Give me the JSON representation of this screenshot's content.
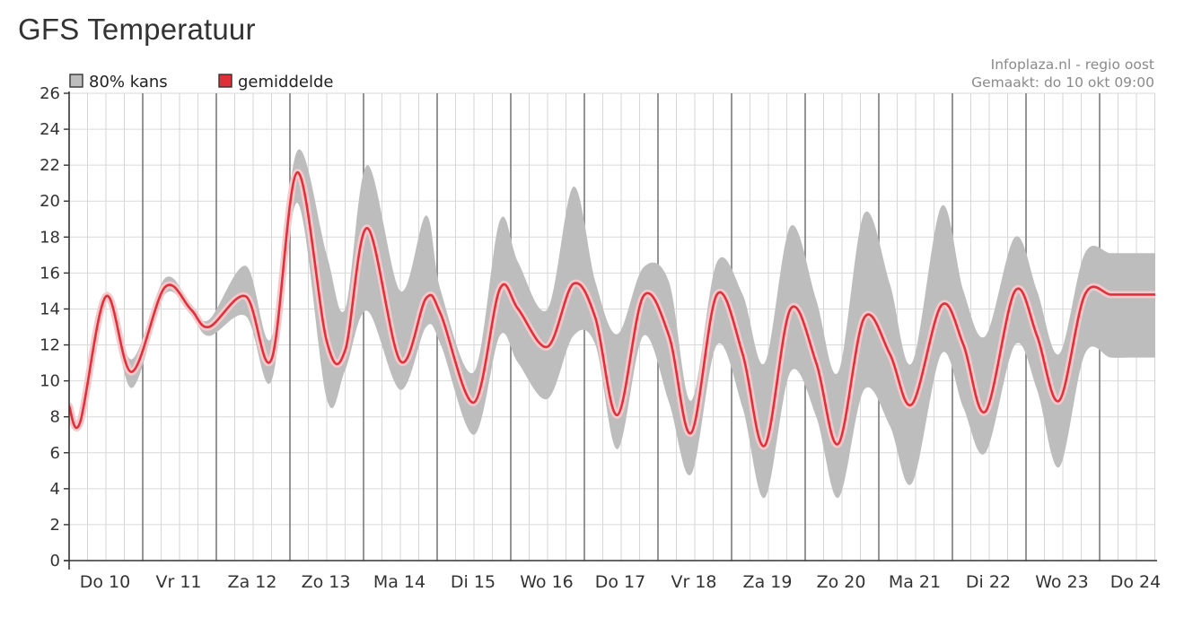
{
  "page": {
    "title": "GFS Temperatuur"
  },
  "chart_data": {
    "type": "area",
    "source": "Infoplaza.nl - regio oost",
    "made": "Gemaakt: do 10 okt 09:00",
    "legend_position": "top-left",
    "grid": true,
    "ylim": [
      0,
      26
    ],
    "y_ticks": [
      0,
      2,
      4,
      6,
      8,
      10,
      12,
      14,
      16,
      18,
      20,
      22,
      24,
      26
    ],
    "x_range_days": [
      -0.95,
      14.85
    ],
    "day_labels": [
      "Do 10",
      "Vr 11",
      "Za 12",
      "Zo 13",
      "Ma 14",
      "Di 15",
      "Wo 16",
      "Do 17",
      "Vr 18",
      "Za 19",
      "Zo 20",
      "Ma 21",
      "Di 22",
      "Wo 23",
      "Do 24"
    ],
    "legend": [
      {
        "label": "80% kans",
        "color": "#bdbdbd"
      },
      {
        "label": "gemiddelde",
        "color": "#e0303a"
      }
    ],
    "x_unit": "days",
    "series": [
      {
        "name": "gemiddelde",
        "x": [
          -0.95,
          -0.8,
          -0.45,
          -0.1,
          0.35,
          0.7,
          0.95,
          1.45,
          1.8,
          2.15,
          2.55,
          2.8,
          3.1,
          3.55,
          3.9,
          4.1,
          4.55,
          4.9,
          5.15,
          5.55,
          5.9,
          6.2,
          6.5,
          6.85,
          7.2,
          7.5,
          7.85,
          8.2,
          8.5,
          8.85,
          9.2,
          9.5,
          9.85,
          10.2,
          10.5,
          10.9,
          11.2,
          11.5,
          11.9,
          12.2,
          12.5,
          12.85,
          13.2,
          13.5,
          13.85,
          14.2,
          14.5,
          14.85
        ],
        "values": [
          8.6,
          7.7,
          14.7,
          10.5,
          15.2,
          14.0,
          13.0,
          14.7,
          11.2,
          21.6,
          12.2,
          11.7,
          18.5,
          11.1,
          14.6,
          13.7,
          8.8,
          15.1,
          14.0,
          11.9,
          15.4,
          13.5,
          8.1,
          14.7,
          12.5,
          7.1,
          14.8,
          11.5,
          6.4,
          14.0,
          11.0,
          6.5,
          13.5,
          11.5,
          8.7,
          14.2,
          12.0,
          8.3,
          15.0,
          12.5,
          8.9,
          14.8,
          14.8,
          14.8,
          14.8,
          14.8,
          14.8,
          14.8
        ]
      },
      {
        "name": "80% kans",
        "x": [
          -0.95,
          -0.8,
          -0.45,
          -0.1,
          0.35,
          0.7,
          0.95,
          1.45,
          1.8,
          2.15,
          2.55,
          2.8,
          3.1,
          3.55,
          3.9,
          4.1,
          4.55,
          4.9,
          5.15,
          5.55,
          5.9,
          6.2,
          6.5,
          6.85,
          7.2,
          7.5,
          7.85,
          8.2,
          8.5,
          8.85,
          9.2,
          9.5,
          9.85,
          10.2,
          10.5,
          10.9,
          11.2,
          11.5,
          11.9,
          12.2,
          12.5,
          12.85,
          13.2,
          13.5,
          13.85,
          14.2,
          14.5,
          14.85
        ],
        "lower": [
          8.5,
          7.6,
          14.4,
          9.6,
          14.8,
          13.7,
          12.5,
          13.6,
          10.0,
          19.9,
          9.0,
          10.6,
          13.9,
          9.5,
          13.0,
          12.0,
          7.0,
          12.5,
          11.0,
          9.0,
          12.5,
          12.0,
          6.2,
          12.5,
          8.8,
          4.8,
          12.0,
          8.5,
          3.5,
          10.5,
          8.0,
          3.5,
          9.5,
          7.5,
          4.3,
          11.5,
          8.5,
          6.0,
          12.0,
          9.5,
          5.2,
          11.5,
          11.3,
          11.3,
          11.3,
          11.3,
          11.3,
          11.3
        ],
        "upper": [
          8.7,
          7.8,
          14.9,
          11.2,
          15.7,
          14.3,
          13.4,
          16.4,
          12.4,
          22.8,
          17.0,
          14.0,
          22.0,
          15.0,
          19.2,
          15.0,
          10.5,
          18.9,
          16.6,
          14.0,
          20.8,
          15.5,
          12.6,
          16.3,
          15.5,
          8.9,
          16.6,
          14.8,
          11.0,
          18.6,
          14.5,
          10.5,
          19.3,
          15.4,
          11.0,
          19.7,
          15.0,
          12.5,
          18.0,
          15.0,
          11.5,
          17.1,
          17.1,
          17.1,
          17.1,
          17.1,
          17.1,
          17.1
        ]
      }
    ]
  }
}
